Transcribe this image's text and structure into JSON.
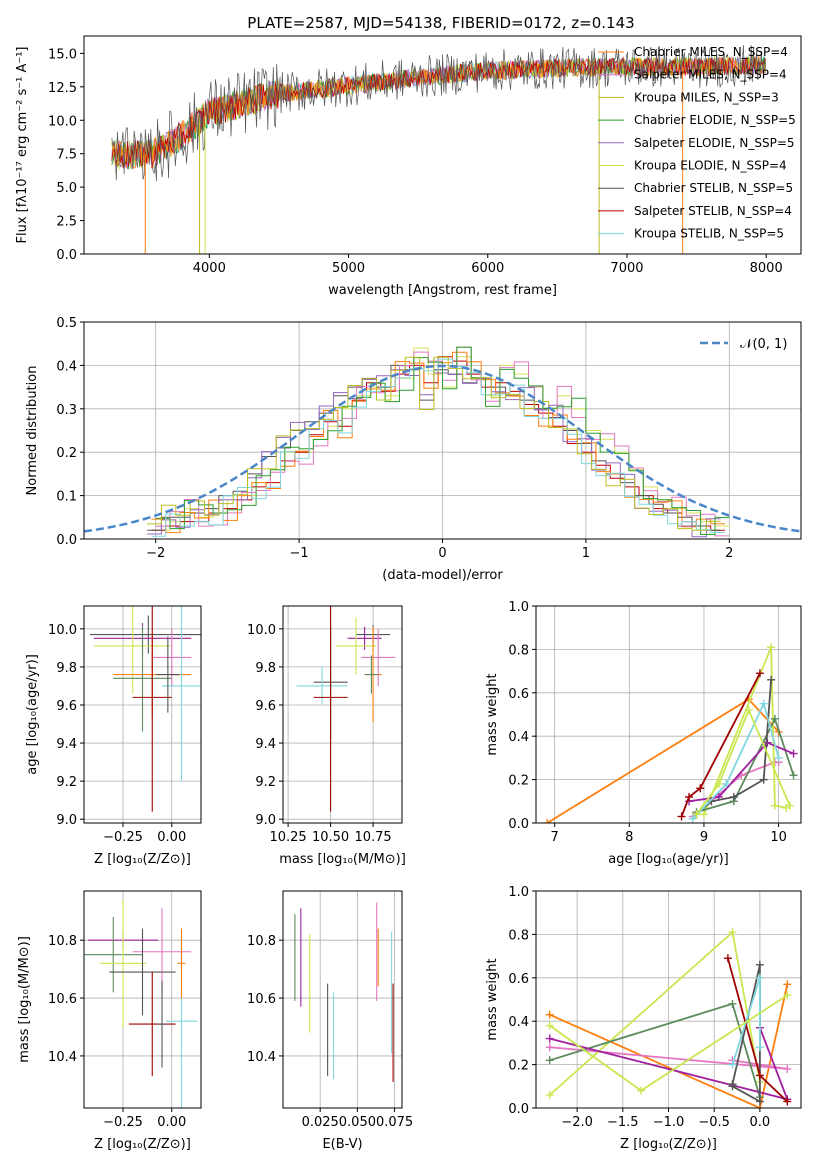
{
  "figure": {
    "title": "PLATE=2587, MJD=54138, FIBERID=0172, z=0.143",
    "model_colors": [
      "#ff7f0e",
      "#e377c2",
      "#bcbd22",
      "#2ca02c",
      "#9467bd",
      "#d4e157",
      "#555555",
      "#c00000",
      "#7fd8df"
    ],
    "model_colors_mass": [
      "#ff7f0e",
      "#e377c2",
      "#c9e74e",
      "#5c8a5c",
      "#a020a0",
      "#c9e74e",
      "#555555",
      "#a00000",
      "#7fd8df"
    ]
  },
  "chart_data": [
    {
      "id": "spectrum",
      "type": "line",
      "title": "PLATE=2587, MJD=54138, FIBERID=0172, z=0.143",
      "xlabel": "wavelength [Angstrom, rest frame]",
      "ylabel": "Flux [fλ10⁻¹⁷ erg cm⁻² s⁻¹ A⁻¹]",
      "xlim": [
        3100,
        8250
      ],
      "ylim": [
        0,
        16.3
      ],
      "xticks": [
        4000,
        5000,
        6000,
        7000,
        8000
      ],
      "yticks": [
        0.0,
        2.5,
        5.0,
        7.5,
        10.0,
        12.5,
        15.0
      ],
      "xtick_labels": [
        "4000",
        "5000",
        "6000",
        "7000",
        "8000"
      ],
      "ytick_labels": [
        "0.0",
        "2.5",
        "5.0",
        "7.5",
        "10.0",
        "12.5",
        "15.0"
      ],
      "legend": [
        "Chabrier MILES, N_SSP=4",
        "Salpeter MILES, N_SSP=4",
        "Kroupa MILES, N_SSP=3",
        "Chabrier ELODIE, N_SSP=5",
        "Salpeter ELODIE, N_SSP=5",
        "Kroupa ELODIE, N_SSP=4",
        "Chabrier STELIB, N_SSP=5",
        "Salpeter STELIB, N_SSP=4",
        "Kroupa STELIB, N_SSP=5"
      ],
      "legend_colors": [
        "#ff7f0e",
        "#e377c2",
        "#bcbd22",
        "#2ca02c",
        "#9467bd",
        "#d4e157",
        "#555555",
        "#c00000",
        "#7fd8df"
      ],
      "legend_position": "top-right",
      "data_range": [
        3300,
        8000
      ],
      "continuum": [
        {
          "x": 3300,
          "y": 7.4
        },
        {
          "x": 3600,
          "y": 7.5
        },
        {
          "x": 3800,
          "y": 8.8
        },
        {
          "x": 4000,
          "y": 10.6
        },
        {
          "x": 4500,
          "y": 12.0
        },
        {
          "x": 5000,
          "y": 12.6
        },
        {
          "x": 5500,
          "y": 13.2
        },
        {
          "x": 6000,
          "y": 13.7
        },
        {
          "x": 6500,
          "y": 13.9
        },
        {
          "x": 7000,
          "y": 14.0
        },
        {
          "x": 7500,
          "y": 14.0
        },
        {
          "x": 8000,
          "y": 14.1
        }
      ],
      "dips": [
        3540,
        3930,
        3970,
        6800,
        7400
      ]
    },
    {
      "id": "residuals",
      "type": "histogram",
      "xlabel": "(data-model)/error",
      "ylabel": "Normed distribution",
      "xlim": [
        -2.5,
        2.5
      ],
      "ylim": [
        0,
        0.5
      ],
      "xticks": [
        -2,
        -1,
        0,
        1,
        2
      ],
      "yticks": [
        0.0,
        0.1,
        0.2,
        0.3,
        0.4,
        0.5
      ],
      "xtick_labels": [
        "−2",
        "−1",
        "0",
        "1",
        "2"
      ],
      "ytick_labels": [
        "0.0",
        "0.1",
        "0.2",
        "0.3",
        "0.4",
        "0.5"
      ],
      "legend": [
        "𝒩(0, 1)"
      ],
      "legend_position": "top-right",
      "bin_width": 0.1,
      "series": [
        {
          "name": "Kroupa ELODIE",
          "values": [
            0.02,
            0.04,
            0.07,
            0.05,
            0.06,
            0.09,
            0.1,
            0.13,
            0.16,
            0.2,
            0.2,
            0.23,
            0.26,
            0.3,
            0.33,
            0.35,
            0.33,
            0.37,
            0.44,
            0.38,
            0.35,
            0.42,
            0.37,
            0.33,
            0.4,
            0.38,
            0.35,
            0.3,
            0.33,
            0.3,
            0.25,
            0.23,
            0.2,
            0.16,
            0.12,
            0.09,
            0.07,
            0.06,
            0.04,
            0.03
          ]
        },
        {
          "name": "Salpeter STELIB",
          "values": [
            0.02,
            0.03,
            0.04,
            0.04,
            0.06,
            0.07,
            0.09,
            0.12,
            0.13,
            0.18,
            0.2,
            0.24,
            0.27,
            0.26,
            0.32,
            0.36,
            0.34,
            0.38,
            0.4,
            0.36,
            0.42,
            0.41,
            0.38,
            0.35,
            0.36,
            0.34,
            0.31,
            0.29,
            0.26,
            0.22,
            0.2,
            0.17,
            0.14,
            0.12,
            0.1,
            0.07,
            0.06,
            0.04,
            0.03,
            0.02
          ]
        },
        {
          "name": "Chabrier STELIB",
          "values": [
            0.02,
            0.05,
            0.05,
            0.06,
            0.07,
            0.1,
            0.11,
            0.15,
            0.19,
            0.21,
            0.25,
            0.27,
            0.29,
            0.33,
            0.35,
            0.37,
            0.35,
            0.4,
            0.39,
            0.32,
            0.39,
            0.38,
            0.36,
            0.37,
            0.35,
            0.33,
            0.32,
            0.3,
            0.28,
            0.25,
            0.22,
            0.18,
            0.15,
            0.13,
            0.1,
            0.08,
            0.06,
            0.05,
            0.03,
            0.02
          ]
        }
      ]
    },
    {
      "id": "age-vs-Z",
      "type": "errorbar",
      "xlabel": "Z [log₁₀(Z/Z⊙)]",
      "ylabel": "age  [log₁₀(age/yr)]",
      "xlim": [
        -0.45,
        0.15
      ],
      "ylim": [
        8.98,
        10.12
      ],
      "xticks": [
        -0.25,
        0.0
      ],
      "yticks": [
        9.0,
        9.2,
        9.4,
        9.6,
        9.8,
        10.0
      ],
      "xtick_labels": [
        "−0.25",
        "0.00"
      ],
      "ytick_labels": [
        "9.0",
        "9.2",
        "9.4",
        "9.6",
        "9.8",
        "10.0"
      ],
      "points": [
        {
          "x": -0.12,
          "xerr": 0.3,
          "y": 9.97,
          "yerr": 0.1,
          "c": 6
        },
        {
          "x": -0.15,
          "xerr": 0.25,
          "y": 9.95,
          "yerr": 0.08,
          "c": 4
        },
        {
          "x": -0.2,
          "xerr": 0.2,
          "y": 9.91,
          "yerr": 0.25,
          "c": 5
        },
        {
          "x": 0.0,
          "xerr": 0.1,
          "y": 9.85,
          "yerr": 0.15,
          "c": 1
        },
        {
          "x": -0.1,
          "xerr": 0.2,
          "y": 9.76,
          "yerr": 0.22,
          "c": 0
        },
        {
          "x": -0.15,
          "xerr": 0.15,
          "y": 9.74,
          "yerr": 0.28,
          "c": 3
        },
        {
          "x": 0.05,
          "xerr": 0.1,
          "y": 9.7,
          "yerr": 0.5,
          "c": 8
        },
        {
          "x": -0.1,
          "xerr": 0.1,
          "y": 9.64,
          "yerr": 0.6,
          "c": 7
        },
        {
          "x": -0.02,
          "xerr": 0.06,
          "y": 9.76,
          "yerr": 0.2,
          "c": 6
        }
      ]
    },
    {
      "id": "age-vs-mass",
      "type": "errorbar",
      "xlabel": "mass [log₁₀(M/M⊙)]",
      "ylabel": "",
      "xlim": [
        10.22,
        10.92
      ],
      "ylim": [
        8.98,
        10.12
      ],
      "xticks": [
        10.25,
        10.5,
        10.75
      ],
      "yticks": [
        9.0,
        9.2,
        9.4,
        9.6,
        9.8,
        10.0
      ],
      "xtick_labels": [
        "10.25",
        "10.50",
        "10.75"
      ],
      "ytick_labels": [
        "9.0",
        "9.2",
        "9.4",
        "9.6",
        "9.8",
        "10.0"
      ],
      "points": [
        {
          "x": 10.75,
          "xerr": 0.1,
          "y": 9.97,
          "yerr": 0.05,
          "c": 6
        },
        {
          "x": 10.7,
          "xerr": 0.1,
          "y": 9.95,
          "yerr": 0.06,
          "c": 4
        },
        {
          "x": 10.65,
          "xerr": 0.12,
          "y": 9.91,
          "yerr": 0.15,
          "c": 5
        },
        {
          "x": 10.78,
          "xerr": 0.1,
          "y": 9.85,
          "yerr": 0.15,
          "c": 1
        },
        {
          "x": 10.75,
          "xerr": 0.05,
          "y": 9.76,
          "yerr": 0.25,
          "c": 0
        },
        {
          "x": 10.5,
          "xerr": 0.1,
          "y": 9.72,
          "yerr": 0.3,
          "c": 6
        },
        {
          "x": 10.45,
          "xerr": 0.15,
          "y": 9.7,
          "yerr": 0.1,
          "c": 8
        },
        {
          "x": 10.5,
          "xerr": 0.1,
          "y": 9.64,
          "yerr": 0.6,
          "c": 7
        },
        {
          "x": 10.74,
          "xerr": 0.04,
          "y": 9.76,
          "yerr": 0.1,
          "c": 3
        }
      ]
    },
    {
      "id": "massweight-vs-age",
      "type": "line",
      "xlabel": "age  [log₁₀(age/yr)]",
      "ylabel": "mass weight",
      "xlim": [
        6.75,
        10.3
      ],
      "ylim": [
        0,
        1.0
      ],
      "xticks": [
        7,
        8,
        9,
        10
      ],
      "yticks": [
        0.0,
        0.2,
        0.4,
        0.6,
        0.8,
        1.0
      ],
      "xtick_labels": [
        "7",
        "8",
        "9",
        "10"
      ],
      "ytick_labels": [
        "0.0",
        "0.2",
        "0.4",
        "0.6",
        "0.8",
        "1.0"
      ],
      "series": [
        {
          "c": 0,
          "x": [
            6.9,
            9.6,
            10.0
          ],
          "y": [
            0.0,
            0.57,
            0.42
          ]
        },
        {
          "c": 1,
          "x": [
            8.85,
            9.5,
            9.95,
            10.0
          ],
          "y": [
            0.03,
            0.22,
            0.28,
            0.28
          ]
        },
        {
          "c": 5,
          "x": [
            9.0,
            9.9,
            9.95,
            10.1
          ],
          "y": [
            0.04,
            0.81,
            0.08,
            0.07
          ]
        },
        {
          "c": 3,
          "x": [
            8.9,
            9.4,
            9.95,
            10.2
          ],
          "y": [
            0.05,
            0.1,
            0.48,
            0.22
          ]
        },
        {
          "c": 4,
          "x": [
            8.8,
            9.2,
            9.85,
            10.2
          ],
          "y": [
            0.1,
            0.12,
            0.37,
            0.32
          ]
        },
        {
          "c": 6,
          "x": [
            8.9,
            9.1,
            9.4,
            9.8,
            9.9
          ],
          "y": [
            0.04,
            0.1,
            0.12,
            0.2,
            0.66
          ]
        },
        {
          "c": 7,
          "x": [
            8.7,
            8.8,
            8.95,
            9.75
          ],
          "y": [
            0.03,
            0.12,
            0.16,
            0.69
          ]
        },
        {
          "c": 8,
          "x": [
            8.85,
            9.3,
            9.8,
            10.0
          ],
          "y": [
            0.02,
            0.18,
            0.55,
            0.3
          ]
        },
        {
          "c": 2,
          "x": [
            8.9,
            9.2,
            9.6,
            10.15
          ],
          "y": [
            0.04,
            0.18,
            0.52,
            0.08
          ]
        }
      ]
    },
    {
      "id": "mass-vs-Z",
      "type": "errorbar",
      "xlabel": "Z [log₁₀(Z/Z⊙)]",
      "ylabel": "mass [log₁₀(M/M⊙)]",
      "xlim": [
        -0.45,
        0.15
      ],
      "ylim": [
        10.22,
        10.97
      ],
      "xticks": [
        -0.25,
        0.0
      ],
      "yticks": [
        10.4,
        10.6,
        10.8
      ],
      "xtick_labels": [
        "−0.25",
        "0.00"
      ],
      "ytick_labels": [
        "10.4",
        "10.6",
        "10.8"
      ],
      "points": [
        {
          "x": -0.25,
          "xerr": 0.18,
          "y": 10.8,
          "yerr": 0.03,
          "c": 4
        },
        {
          "x": -0.05,
          "xerr": 0.15,
          "y": 10.76,
          "yerr": 0.15,
          "c": 1
        },
        {
          "x": -0.3,
          "xerr": 0.15,
          "y": 10.75,
          "yerr": 0.13,
          "c": 3
        },
        {
          "x": -0.25,
          "xerr": 0.12,
          "y": 10.72,
          "yerr": 0.22,
          "c": 5
        },
        {
          "x": -0.15,
          "xerr": 0.17,
          "y": 10.69,
          "yerr": 0.15,
          "c": 6
        },
        {
          "x": 0.05,
          "xerr": 0.08,
          "y": 10.52,
          "yerr": 0.3,
          "c": 8
        },
        {
          "x": -0.1,
          "xerr": 0.12,
          "y": 10.51,
          "yerr": 0.18,
          "c": 7
        },
        {
          "x": 0.05,
          "xerr": 0.02,
          "y": 10.72,
          "yerr": 0.12,
          "c": 0
        },
        {
          "x": -0.05,
          "xerr": 0.02,
          "y": 10.51,
          "yerr": 0.15,
          "c": 6
        }
      ]
    },
    {
      "id": "mass-vs-EBV",
      "type": "errorbar",
      "xlabel": "E(B-V)",
      "ylabel": "",
      "xlim": [
        0.0,
        0.08
      ],
      "ylim": [
        10.22,
        10.97
      ],
      "xticks": [
        0.025,
        0.05,
        0.075
      ],
      "yticks": [
        10.4,
        10.6,
        10.8
      ],
      "xtick_labels": [
        "0.025",
        "0.050",
        "0.075"
      ],
      "ytick_labels": [
        "10.4",
        "10.6",
        "10.8"
      ],
      "points": [
        {
          "x": 0.008,
          "xerr": 0,
          "y": 10.74,
          "yerr": 0.15,
          "c": 3
        },
        {
          "x": 0.012,
          "xerr": 0,
          "y": 10.74,
          "yerr": 0.17,
          "c": 4
        },
        {
          "x": 0.018,
          "xerr": 0,
          "y": 10.65,
          "yerr": 0.17,
          "c": 5
        },
        {
          "x": 0.03,
          "xerr": 0,
          "y": 10.49,
          "yerr": 0.16,
          "c": 6
        },
        {
          "x": 0.034,
          "xerr": 0,
          "y": 10.47,
          "yerr": 0.15,
          "c": 8
        },
        {
          "x": 0.063,
          "xerr": 0,
          "y": 10.76,
          "yerr": 0.17,
          "c": 1
        },
        {
          "x": 0.064,
          "xerr": 0,
          "y": 10.74,
          "yerr": 0.1,
          "c": 0
        },
        {
          "x": 0.073,
          "xerr": 0,
          "y": 10.62,
          "yerr": 0.21,
          "c": 8
        },
        {
          "x": 0.074,
          "xerr": 0,
          "y": 10.48,
          "yerr": 0.17,
          "c": 7
        }
      ]
    },
    {
      "id": "massweight-vs-Z",
      "type": "line",
      "xlabel": "Z [log₁₀(Z/Z⊙)]",
      "ylabel": "mass weight",
      "xlim": [
        -2.45,
        0.45
      ],
      "ylim": [
        0,
        1.0
      ],
      "xticks": [
        -2.0,
        -1.5,
        -1.0,
        -0.5,
        0.0
      ],
      "yticks": [
        0.0,
        0.2,
        0.4,
        0.6,
        0.8,
        1.0
      ],
      "xtick_labels": [
        "−2.0",
        "−1.5",
        "−1.0",
        "−0.5",
        "0.0"
      ],
      "ytick_labels": [
        "0.0",
        "0.2",
        "0.4",
        "0.6",
        "0.8",
        "1.0"
      ],
      "series": [
        {
          "c": 0,
          "x": [
            -2.3,
            0.0,
            0.3
          ],
          "y": [
            0.43,
            0.0,
            0.57
          ]
        },
        {
          "c": 1,
          "x": [
            -2.3,
            0.3,
            -0.3
          ],
          "y": [
            0.28,
            0.18,
            0.22
          ]
        },
        {
          "c": 5,
          "x": [
            -2.3,
            -0.3,
            0.0
          ],
          "y": [
            0.06,
            0.81,
            0.12
          ]
        },
        {
          "c": 3,
          "x": [
            -2.3,
            -0.3,
            0.0
          ],
          "y": [
            0.22,
            0.48,
            0.05
          ]
        },
        {
          "c": 4,
          "x": [
            -2.3,
            0.3,
            0.0
          ],
          "y": [
            0.32,
            0.04,
            0.37
          ]
        },
        {
          "c": 6,
          "x": [
            -0.3,
            0.0,
            0.0,
            -0.3
          ],
          "y": [
            0.11,
            0.66,
            0.03,
            0.1
          ]
        },
        {
          "c": 7,
          "x": [
            -0.35,
            0.0,
            0.3
          ],
          "y": [
            0.69,
            0.15,
            0.03
          ]
        },
        {
          "c": 8,
          "x": [
            -0.3,
            0.0,
            0.0
          ],
          "y": [
            0.2,
            0.6,
            0.28
          ]
        },
        {
          "c": 2,
          "x": [
            -2.3,
            -1.3,
            0.3
          ],
          "y": [
            0.38,
            0.08,
            0.52
          ]
        }
      ]
    }
  ]
}
